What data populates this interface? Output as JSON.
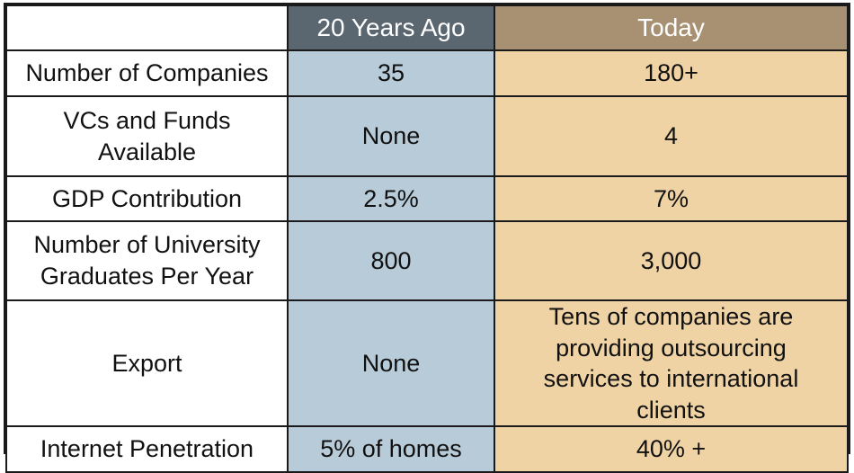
{
  "header": {
    "label_col": "",
    "past_col": "20 Years Ago",
    "today_col": "Today"
  },
  "colors": {
    "past_header": "#5b6770",
    "today_header": "#a89172",
    "past_cell": "#b8cbd8",
    "today_cell": "#efd3a4"
  },
  "rows": [
    {
      "label": "Number of Companies",
      "past": "35",
      "today": "180+"
    },
    {
      "label": "VCs and Funds Available",
      "past": "None",
      "today": "4"
    },
    {
      "label": "GDP Contribution",
      "past": "2.5%",
      "today": "7%"
    },
    {
      "label": "Number of University Graduates Per Year",
      "past": "800",
      "today": "3,000"
    },
    {
      "label": "Export",
      "past": "None",
      "today": "Tens of companies are providing outsourcing services to international clients"
    },
    {
      "label": "Internet Penetration",
      "past": "5% of homes",
      "today": "40% +"
    }
  ]
}
